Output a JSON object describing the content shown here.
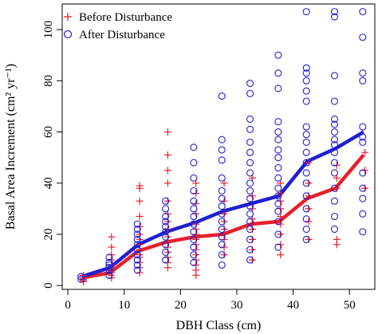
{
  "chart_data": {
    "type": "scatter",
    "xlabel": "DBH Class (cm)",
    "ylabel": "Basal Area Increment (cm² yr⁻¹)",
    "xlim": [
      -1,
      54.5
    ],
    "ylim": [
      -1.5,
      110
    ],
    "x_ticks": [
      0,
      10,
      20,
      30,
      40,
      50
    ],
    "y_ticks": [
      0,
      20,
      40,
      60,
      80,
      100
    ],
    "legend": {
      "position": "top-left"
    },
    "grid": false,
    "series": [
      {
        "name": "Before Disturbance",
        "marker": "plus",
        "color": "#e8202a",
        "offset": 0.25,
        "points": [
          [
            2.5,
            1.5
          ],
          [
            2.5,
            2
          ],
          [
            2.5,
            2.5
          ],
          [
            2.5,
            3
          ],
          [
            2.5,
            4
          ],
          [
            7.5,
            3
          ],
          [
            7.5,
            4
          ],
          [
            7.5,
            5
          ],
          [
            7.5,
            6
          ],
          [
            7.5,
            7
          ],
          [
            7.5,
            8
          ],
          [
            7.5,
            10
          ],
          [
            7.5,
            12
          ],
          [
            7.5,
            15
          ],
          [
            7.5,
            19
          ],
          [
            12.5,
            5
          ],
          [
            12.5,
            7
          ],
          [
            12.5,
            9
          ],
          [
            12.5,
            11
          ],
          [
            12.5,
            12
          ],
          [
            12.5,
            14
          ],
          [
            12.5,
            16
          ],
          [
            12.5,
            18
          ],
          [
            12.5,
            20
          ],
          [
            12.5,
            23
          ],
          [
            12.5,
            27
          ],
          [
            12.5,
            33
          ],
          [
            12.5,
            38
          ],
          [
            12.5,
            39
          ],
          [
            17.5,
            7
          ],
          [
            17.5,
            9
          ],
          [
            17.5,
            11
          ],
          [
            17.5,
            13
          ],
          [
            17.5,
            15
          ],
          [
            17.5,
            17
          ],
          [
            17.5,
            19
          ],
          [
            17.5,
            22
          ],
          [
            17.5,
            25
          ],
          [
            17.5,
            28
          ],
          [
            17.5,
            33
          ],
          [
            17.5,
            40
          ],
          [
            17.5,
            45
          ],
          [
            17.5,
            51
          ],
          [
            17.5,
            60
          ],
          [
            22.5,
            4
          ],
          [
            22.5,
            6
          ],
          [
            22.5,
            8
          ],
          [
            22.5,
            10
          ],
          [
            22.5,
            12
          ],
          [
            22.5,
            14
          ],
          [
            22.5,
            16
          ],
          [
            22.5,
            18
          ],
          [
            22.5,
            20
          ],
          [
            22.5,
            22
          ],
          [
            22.5,
            24
          ],
          [
            22.5,
            28
          ],
          [
            22.5,
            32
          ],
          [
            22.5,
            36
          ],
          [
            22.5,
            40
          ],
          [
            27.5,
            12
          ],
          [
            27.5,
            15
          ],
          [
            27.5,
            18
          ],
          [
            27.5,
            20
          ],
          [
            27.5,
            22
          ],
          [
            27.5,
            25
          ],
          [
            27.5,
            28
          ],
          [
            27.5,
            33
          ],
          [
            27.5,
            40
          ],
          [
            32.5,
            10
          ],
          [
            32.5,
            14
          ],
          [
            32.5,
            18
          ],
          [
            32.5,
            22
          ],
          [
            32.5,
            24
          ],
          [
            32.5,
            26
          ],
          [
            32.5,
            30
          ],
          [
            32.5,
            35
          ],
          [
            32.5,
            42
          ],
          [
            37.5,
            12
          ],
          [
            37.5,
            16
          ],
          [
            37.5,
            20
          ],
          [
            37.5,
            24
          ],
          [
            37.5,
            27
          ],
          [
            37.5,
            30
          ],
          [
            37.5,
            33
          ],
          [
            37.5,
            36
          ],
          [
            37.5,
            40
          ],
          [
            42.5,
            18
          ],
          [
            42.5,
            25
          ],
          [
            42.5,
            30
          ],
          [
            42.5,
            35
          ],
          [
            42.5,
            40
          ],
          [
            42.5,
            48
          ],
          [
            47.5,
            16
          ],
          [
            47.5,
            18
          ],
          [
            47.5,
            38
          ],
          [
            47.5,
            42
          ],
          [
            47.5,
            47
          ],
          [
            52.5,
            38
          ],
          [
            52.5,
            45
          ],
          [
            52.5,
            52
          ]
        ],
        "mean_line": {
          "x": [
            2.5,
            7.5,
            12.5,
            17.5,
            22.5,
            27.5,
            32.5,
            37.5,
            42.5,
            47.5,
            52.5
          ],
          "y": [
            3,
            5,
            13.5,
            17,
            19,
            20,
            24,
            25,
            34,
            38,
            51
          ]
        }
      },
      {
        "name": "After Disturbance",
        "marker": "circle",
        "color": "#1f1fd0",
        "offset": -0.15,
        "points": [
          [
            2.5,
            2.5
          ],
          [
            2.5,
            3.5
          ],
          [
            7.5,
            4
          ],
          [
            7.5,
            6
          ],
          [
            7.5,
            7
          ],
          [
            7.5,
            8
          ],
          [
            7.5,
            9
          ],
          [
            7.5,
            11
          ],
          [
            12.5,
            6
          ],
          [
            12.5,
            8
          ],
          [
            12.5,
            10
          ],
          [
            12.5,
            12
          ],
          [
            12.5,
            14
          ],
          [
            12.5,
            16
          ],
          [
            12.5,
            18
          ],
          [
            12.5,
            20
          ],
          [
            12.5,
            22
          ],
          [
            12.5,
            24
          ],
          [
            17.5,
            10
          ],
          [
            17.5,
            13
          ],
          [
            17.5,
            16
          ],
          [
            17.5,
            19
          ],
          [
            17.5,
            21
          ],
          [
            17.5,
            23
          ],
          [
            17.5,
            25
          ],
          [
            17.5,
            27
          ],
          [
            17.5,
            30
          ],
          [
            17.5,
            33
          ],
          [
            22.5,
            9
          ],
          [
            22.5,
            12
          ],
          [
            22.5,
            15
          ],
          [
            22.5,
            18
          ],
          [
            22.5,
            21
          ],
          [
            22.5,
            24
          ],
          [
            22.5,
            27
          ],
          [
            22.5,
            30
          ],
          [
            22.5,
            33
          ],
          [
            22.5,
            37
          ],
          [
            22.5,
            42
          ],
          [
            22.5,
            48
          ],
          [
            22.5,
            54
          ],
          [
            27.5,
            8
          ],
          [
            27.5,
            12
          ],
          [
            27.5,
            16
          ],
          [
            27.5,
            19
          ],
          [
            27.5,
            22
          ],
          [
            27.5,
            25
          ],
          [
            27.5,
            28
          ],
          [
            27.5,
            31
          ],
          [
            27.5,
            34
          ],
          [
            27.5,
            37
          ],
          [
            27.5,
            42
          ],
          [
            27.5,
            49
          ],
          [
            27.5,
            53
          ],
          [
            27.5,
            57
          ],
          [
            27.5,
            74
          ],
          [
            32.5,
            10
          ],
          [
            32.5,
            14
          ],
          [
            32.5,
            18
          ],
          [
            32.5,
            22
          ],
          [
            32.5,
            25
          ],
          [
            32.5,
            28
          ],
          [
            32.5,
            31
          ],
          [
            32.5,
            34
          ],
          [
            32.5,
            37
          ],
          [
            32.5,
            40
          ],
          [
            32.5,
            44
          ],
          [
            32.5,
            48
          ],
          [
            32.5,
            52
          ],
          [
            32.5,
            56
          ],
          [
            32.5,
            61
          ],
          [
            32.5,
            65
          ],
          [
            32.5,
            75
          ],
          [
            32.5,
            79
          ],
          [
            37.5,
            15
          ],
          [
            37.5,
            20
          ],
          [
            37.5,
            25
          ],
          [
            37.5,
            29
          ],
          [
            37.5,
            32
          ],
          [
            37.5,
            35
          ],
          [
            37.5,
            38
          ],
          [
            37.5,
            42
          ],
          [
            37.5,
            46
          ],
          [
            37.5,
            50
          ],
          [
            37.5,
            53
          ],
          [
            37.5,
            57
          ],
          [
            37.5,
            60
          ],
          [
            37.5,
            64
          ],
          [
            37.5,
            77
          ],
          [
            37.5,
            83
          ],
          [
            37.5,
            90
          ],
          [
            42.5,
            18
          ],
          [
            42.5,
            22
          ],
          [
            42.5,
            26
          ],
          [
            42.5,
            30
          ],
          [
            42.5,
            35
          ],
          [
            42.5,
            40
          ],
          [
            42.5,
            44
          ],
          [
            42.5,
            48
          ],
          [
            42.5,
            52
          ],
          [
            42.5,
            56
          ],
          [
            42.5,
            59
          ],
          [
            42.5,
            62
          ],
          [
            42.5,
            72
          ],
          [
            42.5,
            76
          ],
          [
            42.5,
            80
          ],
          [
            42.5,
            83
          ],
          [
            42.5,
            85
          ],
          [
            42.5,
            107
          ],
          [
            47.5,
            22
          ],
          [
            47.5,
            27
          ],
          [
            47.5,
            33
          ],
          [
            47.5,
            38
          ],
          [
            47.5,
            44
          ],
          [
            47.5,
            48
          ],
          [
            47.5,
            52
          ],
          [
            47.5,
            55
          ],
          [
            47.5,
            57
          ],
          [
            47.5,
            60
          ],
          [
            47.5,
            63
          ],
          [
            47.5,
            65
          ],
          [
            47.5,
            72
          ],
          [
            47.5,
            82
          ],
          [
            47.5,
            105
          ],
          [
            47.5,
            107
          ],
          [
            52.5,
            21
          ],
          [
            52.5,
            28
          ],
          [
            52.5,
            34
          ],
          [
            52.5,
            38
          ],
          [
            52.5,
            44
          ],
          [
            52.5,
            56
          ],
          [
            52.5,
            58
          ],
          [
            52.5,
            62
          ],
          [
            52.5,
            80
          ],
          [
            52.5,
            83
          ],
          [
            52.5,
            97
          ],
          [
            52.5,
            107
          ]
        ],
        "mean_line": {
          "x": [
            2.5,
            7.5,
            12.5,
            17.5,
            22.5,
            27.5,
            32.5,
            37.5,
            42.5,
            47.5,
            52.5
          ],
          "y": [
            3.5,
            7,
            16,
            21,
            24.5,
            29,
            32,
            35,
            48.5,
            53.5,
            60
          ]
        }
      }
    ]
  }
}
